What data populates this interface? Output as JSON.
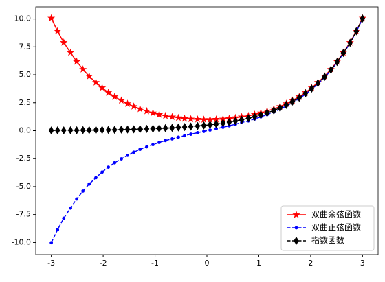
{
  "chart_data": {
    "type": "line",
    "x": [
      -3,
      -2.88,
      -2.76,
      -2.63,
      -2.51,
      -2.39,
      -2.27,
      -2.14,
      -2.02,
      -1.9,
      -1.78,
      -1.65,
      -1.53,
      -1.41,
      -1.29,
      -1.16,
      -1.04,
      -0.92,
      -0.8,
      -0.67,
      -0.55,
      -0.43,
      -0.31,
      -0.18,
      -0.06,
      0.06,
      0.18,
      0.31,
      0.43,
      0.55,
      0.67,
      0.8,
      0.92,
      1.04,
      1.16,
      1.29,
      1.41,
      1.53,
      1.65,
      1.78,
      1.9,
      2.02,
      2.14,
      2.27,
      2.39,
      2.51,
      2.63,
      2.76,
      2.88,
      3
    ],
    "series": [
      {
        "name": "双曲余弦函数",
        "color": "#ff0000",
        "linestyle": "solid",
        "marker": "star",
        "values": [
          10.07,
          8.91,
          7.89,
          6.99,
          6.19,
          5.49,
          4.87,
          4.32,
          3.84,
          3.41,
          3.04,
          2.71,
          2.42,
          2.17,
          1.95,
          1.76,
          1.59,
          1.45,
          1.33,
          1.24,
          1.16,
          1.09,
          1.05,
          1.02,
          1.0,
          1.0,
          1.02,
          1.05,
          1.09,
          1.16,
          1.24,
          1.33,
          1.45,
          1.59,
          1.76,
          1.95,
          2.17,
          2.42,
          2.71,
          3.04,
          3.41,
          3.84,
          4.32,
          4.87,
          5.49,
          6.19,
          6.99,
          7.89,
          8.91,
          10.07
        ]
      },
      {
        "name": "双曲正弦函数",
        "color": "#0000ff",
        "linestyle": "dashed",
        "marker": "dot",
        "values": [
          -10.02,
          -8.86,
          -7.83,
          -6.92,
          -6.11,
          -5.4,
          -4.77,
          -4.2,
          -3.7,
          -3.26,
          -2.87,
          -2.52,
          -2.2,
          -1.92,
          -1.67,
          -1.44,
          -1.24,
          -1.05,
          -0.88,
          -0.73,
          -0.58,
          -0.44,
          -0.31,
          -0.18,
          -0.06,
          0.06,
          0.18,
          0.31,
          0.44,
          0.58,
          0.73,
          0.88,
          1.05,
          1.24,
          1.44,
          1.67,
          1.92,
          2.2,
          2.52,
          2.87,
          3.26,
          3.7,
          4.2,
          4.77,
          5.4,
          6.11,
          6.92,
          7.83,
          8.86,
          10.02
        ]
      },
      {
        "name": "指数函数",
        "color": "#000000",
        "linestyle": "dashed",
        "marker": "diamond",
        "values": [
          0.02,
          0.03,
          0.03,
          0.04,
          0.04,
          0.05,
          0.05,
          0.06,
          0.07,
          0.07,
          0.08,
          0.1,
          0.11,
          0.12,
          0.14,
          0.16,
          0.18,
          0.2,
          0.23,
          0.25,
          0.29,
          0.33,
          0.37,
          0.42,
          0.47,
          0.53,
          0.6,
          0.68,
          0.77,
          0.87,
          0.98,
          1.11,
          1.25,
          1.42,
          1.6,
          1.81,
          2.04,
          2.31,
          2.61,
          2.95,
          3.34,
          3.77,
          4.26,
          4.82,
          5.44,
          6.15,
          6.96,
          7.86,
          8.89,
          10.04
        ]
      }
    ],
    "xlim": [
      -3.3,
      3.3
    ],
    "ylim": [
      -11.08,
      11.08
    ],
    "xticks": [
      -3,
      -2,
      -1,
      0,
      1,
      2,
      3
    ],
    "yticks": [
      {
        "value": -10,
        "label": "-10.0"
      },
      -7.5,
      {
        "value": -5,
        "label": "-5.0"
      },
      -2.5,
      {
        "value": 0,
        "label": "0.0"
      },
      2.5,
      {
        "value": 5,
        "label": "5.0"
      },
      7.5,
      {
        "value": 10,
        "label": "10.0"
      }
    ],
    "grid": false,
    "legend": "lower right"
  }
}
